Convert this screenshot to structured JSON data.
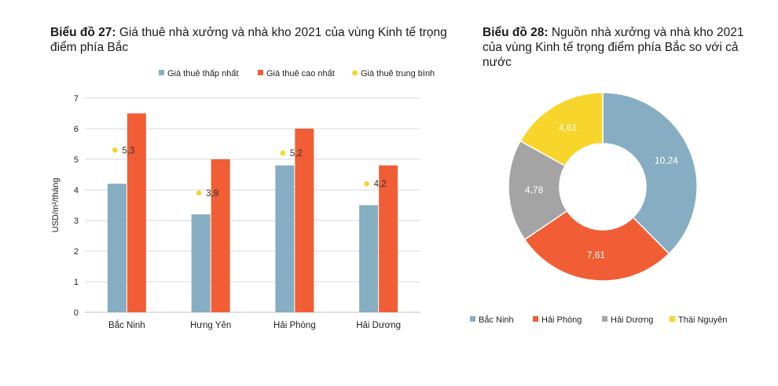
{
  "chart_data": [
    {
      "type": "bar",
      "title_bold": "Biểu đồ 27:",
      "title_rest": " Giá thuê nhà xưởng và nhà kho 2021 của vùng Kinh tế trọng điểm phía Bắc",
      "categories": [
        "Bắc Ninh",
        "Hưng Yên",
        "Hải Phòng",
        "Hải Dương"
      ],
      "series": [
        {
          "name": "Giá thuê thấp nhất",
          "kind": "bar",
          "color": "#86adc1",
          "values": [
            4.2,
            3.2,
            4.8,
            3.5
          ]
        },
        {
          "name": "Giá thuê cao nhất",
          "kind": "bar",
          "color": "#f15d35",
          "values": [
            6.5,
            5.0,
            6.0,
            4.8
          ]
        },
        {
          "name": "Giá thuê trung bình",
          "kind": "point",
          "color": "#f7d52a",
          "values": [
            5.3,
            3.9,
            5.2,
            4.2
          ],
          "labels": [
            "5,3",
            "3,9",
            "5,2",
            "4,2"
          ]
        }
      ],
      "ylabel": "USD/m²/tháng",
      "ylim": [
        0,
        7
      ],
      "yticks": [
        "0",
        "1",
        "2",
        "3",
        "4",
        "5",
        "6",
        "7"
      ],
      "grid": true,
      "legend": "top"
    },
    {
      "type": "pie",
      "variant": "donut",
      "title_bold": "Biểu đồ 28:",
      "title_rest": " Nguồn nhà xưởng và nhà kho 2021 của vùng Kinh tế trọng điểm phía Bắc so với cả nước",
      "labels": [
        "Bắc Ninh",
        "Hải Phòng",
        "Hải Dương",
        "Thái Nguyên"
      ],
      "values": [
        10.24,
        7.61,
        4.78,
        4.61
      ],
      "value_labels": [
        "10,24",
        "7,61",
        "4,78",
        "4,61"
      ],
      "colors": [
        "#86adc1",
        "#f15d35",
        "#a4a4a4",
        "#f7d52a"
      ],
      "legend": "bottom"
    }
  ]
}
